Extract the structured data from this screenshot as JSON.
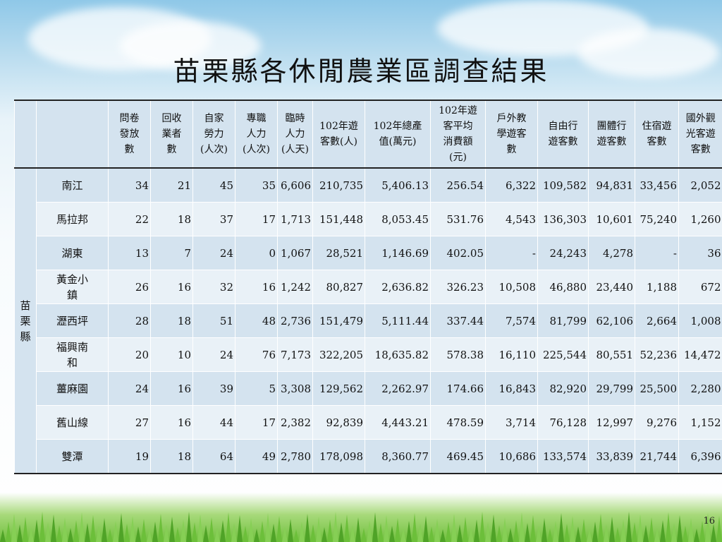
{
  "title": "苗栗縣各休閒農業區調查結果",
  "slide_number": "16",
  "group_label": "苗栗縣",
  "headers": [
    "",
    "",
    "問卷\n發放\n數",
    "回收\n業者\n數",
    "自家\n勞力\n(人次)",
    "專職\n人力\n(人次)",
    "臨時\n人力\n(人天)",
    "102年遊\n客數(人)",
    "102年總產\n值(萬元)",
    "102年遊\n客平均\n消費額\n(元)",
    "戶外教\n學遊客\n數",
    "自由行\n遊客數",
    "團體行\n遊客數",
    "住宿遊\n客數",
    "國外觀\n光客遊\n客數"
  ],
  "rows": [
    {
      "name": "南江",
      "cells": [
        "34",
        "21",
        "45",
        "35",
        "6,606",
        "210,735",
        "5,406.13",
        "256.54",
        "6,322",
        "109,582",
        "94,831",
        "33,456",
        "2,052"
      ]
    },
    {
      "name": "馬拉邦",
      "cells": [
        "22",
        "18",
        "37",
        "17",
        "1,713",
        "151,448",
        "8,053.45",
        "531.76",
        "4,543",
        "136,303",
        "10,601",
        "75,240",
        "1,260"
      ]
    },
    {
      "name": "湖東",
      "cells": [
        "13",
        "7",
        "24",
        "0",
        "1,067",
        "28,521",
        "1,146.69",
        "402.05",
        "-",
        "24,243",
        "4,278",
        "-",
        "36"
      ]
    },
    {
      "name": "黃金小\n鎮",
      "cells": [
        "26",
        "16",
        "32",
        "16",
        "1,242",
        "80,827",
        "2,636.82",
        "326.23",
        "10,508",
        "46,880",
        "23,440",
        "1,188",
        "672"
      ]
    },
    {
      "name": "瀝西坪",
      "cells": [
        "28",
        "18",
        "51",
        "48",
        "2,736",
        "151,479",
        "5,111.44",
        "337.44",
        "7,574",
        "81,799",
        "62,106",
        "2,664",
        "1,008"
      ]
    },
    {
      "name": "福興南\n和",
      "cells": [
        "20",
        "10",
        "24",
        "76",
        "7,173",
        "322,205",
        "18,635.82",
        "578.38",
        "16,110",
        "225,544",
        "80,551",
        "52,236",
        "14,472"
      ]
    },
    {
      "name": "薑麻園",
      "cells": [
        "24",
        "16",
        "39",
        "5",
        "3,308",
        "129,562",
        "2,262.97",
        "174.66",
        "16,843",
        "82,920",
        "29,799",
        "25,500",
        "2,280"
      ]
    },
    {
      "name": "舊山線",
      "cells": [
        "27",
        "16",
        "44",
        "17",
        "2,382",
        "92,839",
        "4,443.21",
        "478.59",
        "3,714",
        "76,128",
        "12,997",
        "9,276",
        "1,152"
      ]
    },
    {
      "name": "雙潭",
      "cells": [
        "19",
        "18",
        "64",
        "49",
        "2,780",
        "178,098",
        "8,360.77",
        "469.45",
        "10,686",
        "133,574",
        "33,839",
        "21,744",
        "6,396"
      ]
    }
  ],
  "colors": {
    "header_border": "#222222",
    "row_odd": "#d4e3ef",
    "row_even": "#e9f1f7",
    "text": "#111111"
  }
}
